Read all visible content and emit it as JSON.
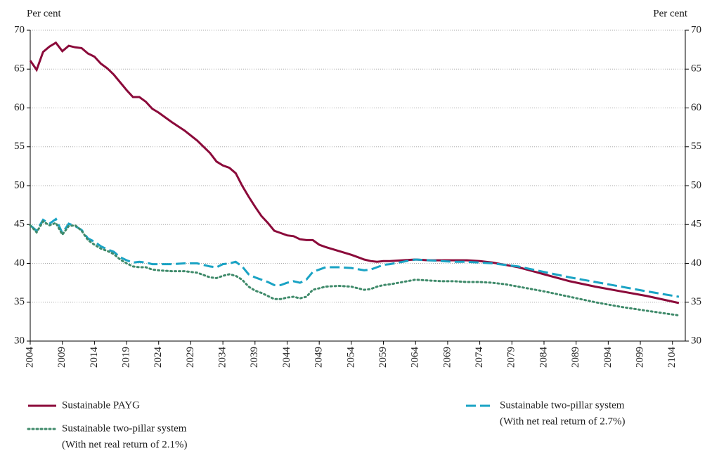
{
  "chart_data": {
    "type": "line",
    "y_label": "Per cent",
    "y2_label": "Per cent",
    "x": [
      2004,
      2005,
      2006,
      2007,
      2008,
      2009,
      2010,
      2011,
      2012,
      2013,
      2014,
      2015,
      2016,
      2017,
      2018,
      2019,
      2020,
      2021,
      2022,
      2023,
      2024,
      2026,
      2028,
      2030,
      2032,
      2033,
      2034,
      2035,
      2036,
      2037,
      2038,
      2039,
      2040,
      2041,
      2042,
      2043,
      2044,
      2045,
      2046,
      2047,
      2048,
      2049,
      2050,
      2052,
      2054,
      2056,
      2057,
      2058,
      2059,
      2060,
      2062,
      2064,
      2066,
      2068,
      2070,
      2072,
      2074,
      2076,
      2078,
      2080,
      2084,
      2088,
      2092,
      2096,
      2100,
      2105
    ],
    "series": [
      {
        "name": "Sustainable PAYG",
        "color": "#8b0a3a",
        "dash": "solid",
        "values": [
          66.1,
          64.9,
          67.2,
          67.9,
          68.4,
          67.3,
          68.0,
          67.8,
          67.7,
          67.0,
          66.6,
          65.7,
          65.1,
          64.3,
          63.3,
          62.3,
          61.4,
          61.4,
          60.8,
          59.9,
          59.4,
          58.2,
          57.1,
          55.8,
          54.2,
          53.1,
          52.6,
          52.3,
          51.6,
          50.0,
          48.6,
          47.3,
          46.1,
          45.2,
          44.2,
          43.9,
          43.6,
          43.5,
          43.1,
          43.0,
          43.0,
          42.4,
          42.1,
          41.6,
          41.1,
          40.5,
          40.3,
          40.2,
          40.3,
          40.3,
          40.4,
          40.5,
          40.4,
          40.4,
          40.4,
          40.4,
          40.3,
          40.1,
          39.8,
          39.5,
          38.6,
          37.7,
          37.0,
          36.4,
          35.8,
          34.9
        ]
      },
      {
        "name": "Sustainable two-pillar system",
        "legend_note": "(With net real return of 2.7%)",
        "color": "#1aa3c4",
        "dash": "dashed",
        "values": [
          44.9,
          44.2,
          45.6,
          45.1,
          45.7,
          43.9,
          45.1,
          44.8,
          44.3,
          43.2,
          42.8,
          42.2,
          41.8,
          41.5,
          40.8,
          40.4,
          40.1,
          40.2,
          40.1,
          39.9,
          39.9,
          39.9,
          40.0,
          40.0,
          39.6,
          39.5,
          39.9,
          40.0,
          40.2,
          39.6,
          38.6,
          38.2,
          37.9,
          37.6,
          37.2,
          37.2,
          37.5,
          37.7,
          37.5,
          37.9,
          38.9,
          39.2,
          39.5,
          39.5,
          39.4,
          39.1,
          39.2,
          39.5,
          39.8,
          39.9,
          40.2,
          40.5,
          40.4,
          40.3,
          40.2,
          40.2,
          40.1,
          40.0,
          39.8,
          39.6,
          38.9,
          38.2,
          37.6,
          37.0,
          36.4,
          35.7
        ]
      },
      {
        "name": "Sustainable two-pillar system",
        "legend_note": "(With net real return of 2.1%)",
        "color": "#3f8a6a",
        "dash": "dotted",
        "values": [
          44.9,
          44.0,
          45.4,
          44.9,
          45.2,
          43.7,
          44.8,
          44.9,
          44.2,
          43.0,
          42.4,
          41.9,
          41.6,
          41.2,
          40.5,
          40.0,
          39.6,
          39.5,
          39.5,
          39.2,
          39.1,
          39.0,
          39.0,
          38.8,
          38.2,
          38.1,
          38.4,
          38.6,
          38.4,
          37.9,
          37.0,
          36.5,
          36.2,
          35.8,
          35.4,
          35.4,
          35.6,
          35.7,
          35.5,
          35.7,
          36.6,
          36.8,
          37.0,
          37.1,
          37.0,
          36.6,
          36.7,
          37.0,
          37.2,
          37.3,
          37.6,
          37.9,
          37.8,
          37.7,
          37.7,
          37.6,
          37.6,
          37.5,
          37.3,
          37.0,
          36.4,
          35.7,
          35.0,
          34.4,
          33.9,
          33.3
        ]
      }
    ],
    "xlim": [
      2004,
      2106
    ],
    "xticks": [
      2004,
      2009,
      2014,
      2019,
      2024,
      2029,
      2034,
      2039,
      2044,
      2049,
      2054,
      2059,
      2064,
      2069,
      2074,
      2079,
      2084,
      2089,
      2094,
      2099,
      2104
    ],
    "ylim": [
      30,
      70
    ],
    "yticks": [
      30,
      35,
      40,
      45,
      50,
      55,
      60,
      65,
      70
    ],
    "y2lim": [
      30,
      70
    ],
    "y2ticks": [
      30,
      35,
      40,
      45,
      50,
      55,
      60,
      65,
      70
    ],
    "grid": true
  }
}
